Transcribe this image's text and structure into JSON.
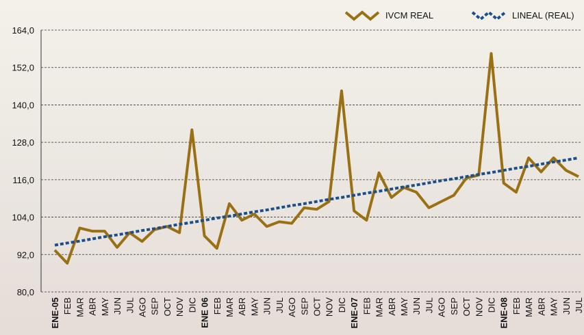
{
  "chart_data": {
    "type": "line",
    "categories": [
      "ENE-05",
      "FEB",
      "MAR",
      "ABR",
      "MAY",
      "JUN",
      "JUL",
      "AGO",
      "SEP",
      "OCT",
      "NOV",
      "DIC",
      "ENE 06",
      "FEB",
      "MAR",
      "ABR",
      "MAY",
      "JUN",
      "JUL",
      "AGO",
      "SEP",
      "OCT",
      "NOV",
      "DIC",
      "ENE-07",
      "FEB",
      "MAR",
      "ABR",
      "MAY",
      "JUN",
      "JUL",
      "AGO",
      "SEP",
      "OCT",
      "NOV",
      "DIC",
      "ENE-08",
      "FEB",
      "MAR",
      "ABR",
      "MAY",
      "JUN",
      "JUL"
    ],
    "series": [
      {
        "name": "IVCM REAL",
        "color": "#9a7014",
        "style": "solid",
        "values": [
          93.4,
          89.2,
          100.5,
          99.5,
          99.5,
          94.3,
          99,
          96.2,
          100,
          101,
          99,
          132,
          98,
          94,
          108.3,
          103,
          105,
          101,
          102.5,
          102,
          107,
          106.5,
          109,
          144.5,
          106,
          103,
          118.2,
          110.3,
          113.5,
          112,
          107,
          109,
          111,
          116.5,
          117.5,
          156.5,
          114.9,
          112,
          123,
          118.5,
          123,
          119,
          117
        ]
      },
      {
        "name": "LINEAL (REAL)",
        "color": "#1b4f8a",
        "style": "dotted",
        "values": [
          95,
          95.7,
          96.3,
          97,
          97.7,
          98.3,
          99,
          99.7,
          100.3,
          101,
          101.7,
          102.3,
          103,
          103.7,
          104.3,
          105,
          105.7,
          106.3,
          107,
          107.7,
          108.3,
          109,
          109.7,
          110.3,
          111,
          111.7,
          112.3,
          113,
          113.7,
          114.3,
          115,
          115.7,
          116.3,
          117,
          117.7,
          118.3,
          119,
          119.7,
          120.3,
          121,
          121.7,
          122.3,
          123
        ]
      }
    ],
    "ylim": [
      80,
      164
    ],
    "yticks": [
      {
        "value": 80,
        "label": "80,0"
      },
      {
        "value": 92,
        "label": "92,0"
      },
      {
        "value": 104,
        "label": "104,0"
      },
      {
        "value": 116,
        "label": "116,0"
      },
      {
        "value": 128,
        "label": "128,0"
      },
      {
        "value": 140,
        "label": "140,0"
      },
      {
        "value": 152,
        "label": "152,0"
      },
      {
        "value": 164,
        "label": "164,0"
      }
    ],
    "grid": true,
    "legend": "top-right"
  }
}
